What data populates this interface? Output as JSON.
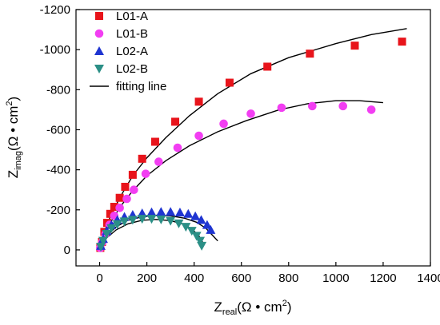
{
  "chart_data": {
    "type": "scatter",
    "x": {
      "label_main": "Z",
      "label_sub": "real",
      "label_unit": "(Ω • cm",
      "label_sup": "2",
      "label_close": ")",
      "range": [
        -100,
        1400
      ],
      "ticks": [
        0,
        200,
        400,
        600,
        800,
        1000,
        1200,
        1400
      ]
    },
    "y": {
      "label_main": "Z",
      "label_sub": "imag",
      "label_unit": "(Ω • cm",
      "label_sup": "2",
      "label_close": ")",
      "range": [
        -1200,
        80
      ],
      "inverted": true,
      "ticks": [
        -1200,
        -1000,
        -800,
        -600,
        -400,
        -200,
        0
      ]
    },
    "grid": false,
    "legend_position": "top-left",
    "series": [
      {
        "name": "L01-A",
        "marker": "square",
        "color": "#e8141b",
        "points": [
          [
            3,
            -10
          ],
          [
            10,
            -40
          ],
          [
            20,
            -90
          ],
          [
            32,
            -135
          ],
          [
            45,
            -180
          ],
          [
            62,
            -215
          ],
          [
            85,
            -260
          ],
          [
            108,
            -315
          ],
          [
            140,
            -375
          ],
          [
            180,
            -455
          ],
          [
            235,
            -540
          ],
          [
            320,
            -640
          ],
          [
            420,
            -740
          ],
          [
            550,
            -835
          ],
          [
            710,
            -915
          ],
          [
            890,
            -980
          ],
          [
            1080,
            -1020
          ],
          [
            1280,
            -1040
          ]
        ]
      },
      {
        "name": "L01-B",
        "marker": "circle",
        "color": "#f23ef2",
        "points": [
          [
            3,
            -10
          ],
          [
            12,
            -40
          ],
          [
            25,
            -80
          ],
          [
            42,
            -125
          ],
          [
            62,
            -170
          ],
          [
            85,
            -210
          ],
          [
            115,
            -255
          ],
          [
            145,
            -300
          ],
          [
            195,
            -380
          ],
          [
            250,
            -440
          ],
          [
            330,
            -510
          ],
          [
            420,
            -570
          ],
          [
            525,
            -630
          ],
          [
            640,
            -680
          ],
          [
            770,
            -710
          ],
          [
            900,
            -718
          ],
          [
            1030,
            -718
          ],
          [
            1150,
            -700
          ]
        ]
      },
      {
        "name": "L02-A",
        "marker": "triangle-up",
        "color": "#1f35d1",
        "points": [
          [
            5,
            -20
          ],
          [
            15,
            -55
          ],
          [
            30,
            -95
          ],
          [
            50,
            -125
          ],
          [
            75,
            -150
          ],
          [
            105,
            -165
          ],
          [
            140,
            -175
          ],
          [
            180,
            -183
          ],
          [
            220,
            -188
          ],
          [
            260,
            -190
          ],
          [
            300,
            -190
          ],
          [
            340,
            -187
          ],
          [
            375,
            -180
          ],
          [
            405,
            -168
          ],
          [
            430,
            -150
          ],
          [
            455,
            -125
          ],
          [
            470,
            -100
          ]
        ]
      },
      {
        "name": "L02-B",
        "marker": "triangle-down",
        "color": "#2b8f86",
        "points": [
          [
            5,
            -15
          ],
          [
            15,
            -45
          ],
          [
            30,
            -80
          ],
          [
            50,
            -108
          ],
          [
            75,
            -128
          ],
          [
            105,
            -142
          ],
          [
            140,
            -150
          ],
          [
            180,
            -155
          ],
          [
            220,
            -155
          ],
          [
            260,
            -152
          ],
          [
            300,
            -145
          ],
          [
            335,
            -132
          ],
          [
            365,
            -115
          ],
          [
            390,
            -95
          ],
          [
            410,
            -70
          ],
          [
            425,
            -45
          ],
          [
            432,
            -20
          ]
        ]
      }
    ],
    "fit_lines": [
      {
        "name": "fitting line",
        "color": "#000000",
        "points": [
          [
            0,
            0
          ],
          [
            20,
            -90
          ],
          [
            50,
            -180
          ],
          [
            90,
            -270
          ],
          [
            140,
            -370
          ],
          [
            200,
            -460
          ],
          [
            280,
            -560
          ],
          [
            380,
            -670
          ],
          [
            500,
            -780
          ],
          [
            640,
            -880
          ],
          [
            800,
            -960
          ],
          [
            1000,
            -1030
          ],
          [
            1150,
            -1075
          ],
          [
            1300,
            -1105
          ]
        ]
      },
      {
        "name": "",
        "color": "#000000",
        "points": [
          [
            0,
            0
          ],
          [
            20,
            -70
          ],
          [
            50,
            -145
          ],
          [
            90,
            -220
          ],
          [
            140,
            -295
          ],
          [
            200,
            -370
          ],
          [
            280,
            -445
          ],
          [
            380,
            -520
          ],
          [
            500,
            -590
          ],
          [
            620,
            -645
          ],
          [
            760,
            -700
          ],
          [
            880,
            -730
          ],
          [
            1000,
            -745
          ],
          [
            1100,
            -745
          ],
          [
            1200,
            -735
          ]
        ]
      },
      {
        "name": "",
        "color": "#000000",
        "points": [
          [
            0,
            0
          ],
          [
            30,
            -70
          ],
          [
            70,
            -115
          ],
          [
            120,
            -148
          ],
          [
            180,
            -165
          ],
          [
            240,
            -173
          ],
          [
            300,
            -170
          ],
          [
            360,
            -158
          ],
          [
            410,
            -138
          ],
          [
            450,
            -108
          ],
          [
            480,
            -70
          ],
          [
            500,
            -45
          ]
        ]
      },
      {
        "name": "",
        "color": "#000000",
        "points": [
          [
            0,
            0
          ],
          [
            30,
            -60
          ],
          [
            70,
            -100
          ],
          [
            120,
            -130
          ],
          [
            180,
            -148
          ],
          [
            240,
            -152
          ],
          [
            300,
            -146
          ],
          [
            350,
            -130
          ],
          [
            390,
            -105
          ],
          [
            420,
            -70
          ],
          [
            440,
            -30
          ]
        ]
      }
    ]
  }
}
